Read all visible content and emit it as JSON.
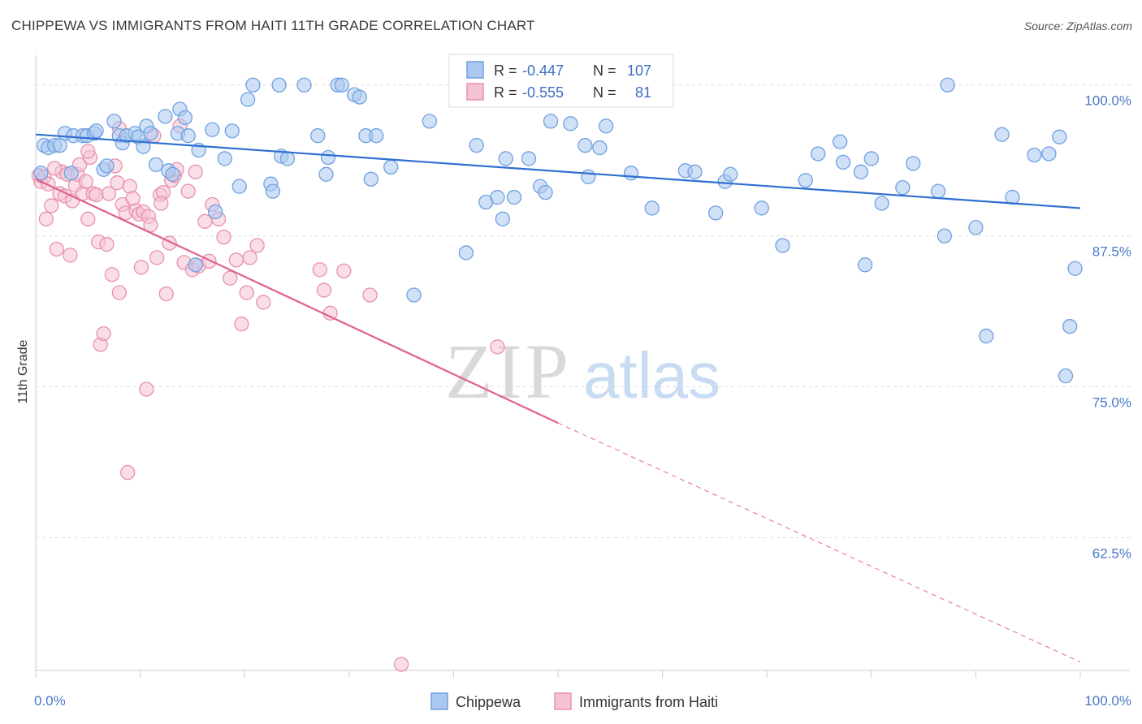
{
  "title": "CHIPPEWA VS IMMIGRANTS FROM HAITI 11TH GRADE CORRELATION CHART",
  "source": "Source: ZipAtlas.com",
  "watermark": {
    "zip": "ZIP",
    "atlas": "atlas"
  },
  "chart_data": {
    "type": "scatter",
    "xlabel": "",
    "ylabel": "11th Grade",
    "xlim": [
      0,
      100
    ],
    "ylim": [
      51.5,
      102
    ],
    "x_tick_labels": [
      "0.0%",
      "100.0%"
    ],
    "y_ticks": [
      {
        "value": 100.0,
        "label": "100.0%"
      },
      {
        "value": 87.5,
        "label": "87.5%"
      },
      {
        "value": 75.0,
        "label": "75.0%"
      },
      {
        "value": 62.5,
        "label": "62.5%"
      }
    ],
    "grid": "horizontal dashed",
    "legend": {
      "placement": "top-center",
      "entries": [
        {
          "r_label": "R =",
          "r": "-0.447",
          "n_label": "N =",
          "n": "107"
        },
        {
          "r_label": "R =",
          "r": "-0.555",
          "n_label": "N =",
          "n": "81"
        }
      ]
    },
    "series": [
      {
        "name": "Chippewa",
        "color": "#6fa0e0",
        "fill": "#aac8f0",
        "trend": {
          "x0": 0,
          "y0": 95.9,
          "x1": 100,
          "y1": 89.8,
          "style": "solid",
          "line_color": "#2f6fd0"
        },
        "points": [
          [
            0.5,
            92.7
          ],
          [
            0.8,
            95.0
          ],
          [
            1.2,
            94.8
          ],
          [
            1.8,
            95.0
          ],
          [
            2.3,
            95.0
          ],
          [
            2.8,
            96.0
          ],
          [
            3.4,
            92.7
          ],
          [
            3.6,
            95.8
          ],
          [
            4.5,
            95.8
          ],
          [
            4.9,
            95.8
          ],
          [
            5.6,
            96.0
          ],
          [
            5.8,
            96.2
          ],
          [
            6.5,
            93.0
          ],
          [
            6.8,
            93.3
          ],
          [
            7.5,
            97.0
          ],
          [
            8.0,
            95.8
          ],
          [
            8.3,
            95.2
          ],
          [
            8.7,
            95.8
          ],
          [
            9.5,
            96.0
          ],
          [
            9.8,
            95.7
          ],
          [
            10.3,
            94.9
          ],
          [
            10.6,
            96.6
          ],
          [
            11.0,
            96.0
          ],
          [
            11.5,
            93.4
          ],
          [
            12.4,
            97.4
          ],
          [
            12.7,
            92.9
          ],
          [
            13.1,
            92.6
          ],
          [
            13.6,
            96.0
          ],
          [
            13.8,
            98.0
          ],
          [
            14.3,
            97.3
          ],
          [
            14.6,
            95.8
          ],
          [
            15.3,
            85.1
          ],
          [
            15.6,
            94.6
          ],
          [
            16.9,
            96.3
          ],
          [
            17.2,
            89.5
          ],
          [
            18.1,
            93.9
          ],
          [
            18.8,
            96.2
          ],
          [
            19.5,
            91.6
          ],
          [
            20.3,
            98.8
          ],
          [
            20.8,
            100.0
          ],
          [
            22.5,
            91.8
          ],
          [
            22.7,
            91.2
          ],
          [
            23.3,
            100.0
          ],
          [
            23.5,
            94.1
          ],
          [
            24.1,
            93.9
          ],
          [
            25.7,
            100.0
          ],
          [
            27.0,
            95.8
          ],
          [
            27.8,
            92.6
          ],
          [
            28.0,
            94.0
          ],
          [
            28.9,
            100.0
          ],
          [
            29.3,
            100.0
          ],
          [
            30.5,
            99.2
          ],
          [
            31.0,
            99.0
          ],
          [
            31.6,
            95.8
          ],
          [
            32.1,
            92.2
          ],
          [
            32.6,
            95.8
          ],
          [
            34.0,
            93.2
          ],
          [
            36.2,
            82.6
          ],
          [
            37.7,
            97.0
          ],
          [
            41.2,
            86.1
          ],
          [
            42.2,
            95.0
          ],
          [
            43.1,
            90.3
          ],
          [
            44.2,
            90.7
          ],
          [
            44.7,
            88.9
          ],
          [
            45.0,
            93.9
          ],
          [
            45.8,
            90.7
          ],
          [
            47.2,
            93.9
          ],
          [
            48.3,
            91.6
          ],
          [
            48.8,
            91.1
          ],
          [
            49.3,
            97.0
          ],
          [
            51.2,
            96.8
          ],
          [
            52.6,
            95.0
          ],
          [
            52.9,
            92.4
          ],
          [
            54.0,
            94.8
          ],
          [
            54.6,
            96.6
          ],
          [
            57.0,
            92.7
          ],
          [
            59.0,
            89.8
          ],
          [
            62.2,
            92.9
          ],
          [
            63.1,
            92.8
          ],
          [
            65.1,
            89.4
          ],
          [
            66.0,
            92.0
          ],
          [
            66.5,
            92.6
          ],
          [
            69.5,
            89.8
          ],
          [
            71.5,
            86.7
          ],
          [
            73.7,
            92.1
          ],
          [
            74.9,
            94.3
          ],
          [
            77.0,
            95.3
          ],
          [
            77.3,
            93.6
          ],
          [
            79.0,
            92.8
          ],
          [
            79.4,
            85.1
          ],
          [
            80.0,
            93.9
          ],
          [
            81.0,
            90.2
          ],
          [
            83.0,
            91.5
          ],
          [
            84.0,
            93.5
          ],
          [
            86.4,
            91.2
          ],
          [
            87.0,
            87.5
          ],
          [
            87.3,
            100.0
          ],
          [
            90.0,
            88.2
          ],
          [
            91.0,
            79.2
          ],
          [
            92.5,
            95.9
          ],
          [
            93.5,
            90.7
          ],
          [
            95.6,
            94.2
          ],
          [
            97.0,
            94.3
          ],
          [
            98.0,
            95.7
          ],
          [
            98.6,
            75.9
          ],
          [
            99.0,
            80.0
          ],
          [
            99.5,
            84.8
          ]
        ]
      },
      {
        "name": "Immigrants from Haiti",
        "color": "#e890b0",
        "fill": "#f5c2d4",
        "trend": {
          "x0": 0,
          "y0": 92.2,
          "x1": 50,
          "y1": 72.0,
          "x_dash_end": 100,
          "y_dash_end": 52.2,
          "style": "solid then dashed",
          "line_color": "#e06090"
        },
        "points": [
          [
            0.3,
            92.5
          ],
          [
            0.5,
            92.0
          ],
          [
            0.8,
            92.4
          ],
          [
            1.0,
            88.9
          ],
          [
            1.2,
            91.8
          ],
          [
            1.5,
            90.0
          ],
          [
            2.0,
            86.4
          ],
          [
            2.3,
            91.0
          ],
          [
            2.5,
            92.8
          ],
          [
            2.8,
            90.8
          ],
          [
            3.0,
            92.6
          ],
          [
            3.3,
            85.9
          ],
          [
            3.5,
            90.4
          ],
          [
            3.8,
            91.7
          ],
          [
            4.0,
            92.6
          ],
          [
            4.2,
            93.4
          ],
          [
            4.5,
            91.0
          ],
          [
            4.8,
            92.0
          ],
          [
            5.0,
            88.9
          ],
          [
            5.2,
            94.0
          ],
          [
            5.5,
            91.0
          ],
          [
            5.8,
            90.9
          ],
          [
            6.0,
            87.0
          ],
          [
            6.2,
            78.5
          ],
          [
            6.5,
            79.4
          ],
          [
            6.8,
            86.8
          ],
          [
            7.0,
            91.0
          ],
          [
            7.3,
            84.3
          ],
          [
            7.6,
            93.3
          ],
          [
            7.8,
            91.9
          ],
          [
            8.0,
            82.8
          ],
          [
            8.3,
            90.1
          ],
          [
            8.6,
            89.4
          ],
          [
            8.8,
            67.9
          ],
          [
            9.0,
            91.6
          ],
          [
            9.3,
            90.6
          ],
          [
            9.6,
            89.6
          ],
          [
            9.9,
            89.3
          ],
          [
            10.1,
            84.9
          ],
          [
            10.3,
            89.5
          ],
          [
            10.6,
            74.8
          ],
          [
            10.8,
            89.1
          ],
          [
            11.0,
            88.4
          ],
          [
            11.3,
            95.8
          ],
          [
            11.6,
            85.7
          ],
          [
            11.9,
            90.9
          ],
          [
            12.2,
            91.1
          ],
          [
            12.5,
            82.7
          ],
          [
            12.8,
            86.9
          ],
          [
            13.0,
            92.1
          ],
          [
            13.3,
            92.5
          ],
          [
            13.5,
            93.0
          ],
          [
            13.8,
            96.6
          ],
          [
            14.2,
            85.3
          ],
          [
            14.6,
            91.2
          ],
          [
            15.0,
            84.7
          ],
          [
            15.3,
            92.8
          ],
          [
            15.6,
            85.0
          ],
          [
            16.2,
            88.7
          ],
          [
            16.6,
            85.4
          ],
          [
            16.9,
            90.1
          ],
          [
            17.5,
            88.9
          ],
          [
            18.0,
            87.4
          ],
          [
            18.6,
            84.0
          ],
          [
            19.2,
            85.5
          ],
          [
            19.7,
            80.2
          ],
          [
            20.2,
            82.8
          ],
          [
            20.5,
            85.7
          ],
          [
            21.2,
            86.7
          ],
          [
            21.8,
            82.0
          ],
          [
            27.2,
            84.7
          ],
          [
            27.6,
            83.0
          ],
          [
            28.2,
            81.1
          ],
          [
            29.5,
            84.6
          ],
          [
            32.0,
            82.6
          ],
          [
            44.2,
            78.3
          ],
          [
            35.0,
            52.0
          ],
          [
            8.0,
            96.4
          ],
          [
            5.0,
            94.5
          ],
          [
            1.8,
            93.1
          ],
          [
            12.0,
            90.2
          ]
        ]
      }
    ]
  }
}
